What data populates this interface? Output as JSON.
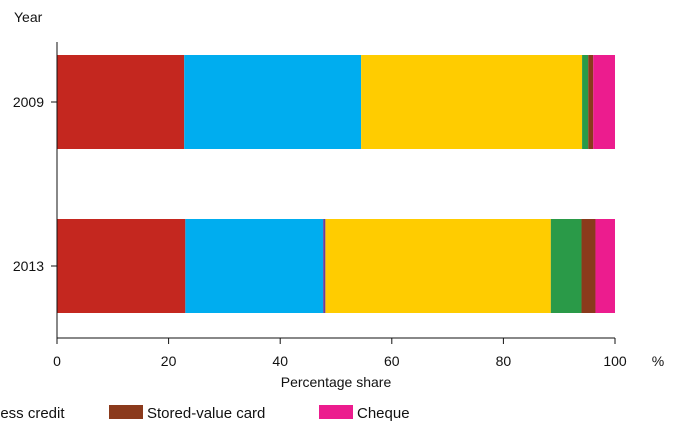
{
  "chart_data": {
    "type": "bar",
    "orientation": "horizontal",
    "stacked": true,
    "ylabel": "Year",
    "xlabel": "Percentage share",
    "x_unit": "%",
    "xlim": [
      0,
      100
    ],
    "x_ticks": [
      0,
      20,
      40,
      60,
      80,
      100
    ],
    "grid": false,
    "legend_position": "bottom",
    "categories": [
      "2009",
      "2013"
    ],
    "series": [
      {
        "name": "",
        "color": "#c4271f",
        "values": [
          22.8,
          23.0
        ]
      },
      {
        "name": "",
        "color": "#00adef",
        "values": [
          31.7,
          24.7
        ]
      },
      {
        "name": "",
        "color": "#6a3f9a",
        "values": [
          0.0,
          0.4
        ]
      },
      {
        "name": "",
        "color": "#ffcc00",
        "values": [
          39.6,
          40.4
        ]
      },
      {
        "name": "less credit",
        "color": "#2a9a48",
        "values": [
          1.1,
          5.5
        ]
      },
      {
        "name": "Stored-value card",
        "color": "#8b3a1c",
        "values": [
          0.9,
          2.5
        ]
      },
      {
        "name": "Cheque",
        "color": "#ec1c8e",
        "values": [
          3.9,
          3.5
        ]
      }
    ]
  }
}
